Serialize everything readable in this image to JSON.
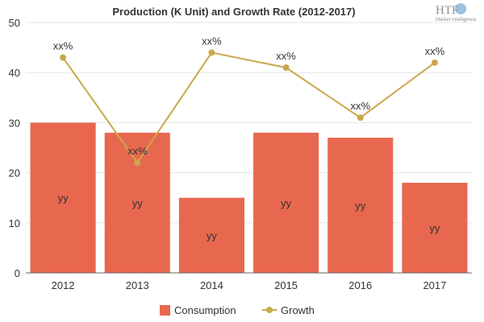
{
  "chart_data": {
    "type": "bar",
    "title": "Production (K Unit) and Growth Rate (2012-2017)",
    "categories": [
      "2012",
      "2013",
      "2014",
      "2015",
      "2016",
      "2017"
    ],
    "ylim": [
      0,
      50
    ],
    "yticks": [
      "0",
      "10",
      "20",
      "30",
      "40",
      "50"
    ],
    "grid": true,
    "series": [
      {
        "name": "Consumption",
        "type": "bar",
        "color": "#e8684f",
        "values": [
          30,
          28,
          15,
          28,
          27,
          18
        ],
        "labels": [
          "yy",
          "yy",
          "yy",
          "yy",
          "yy",
          "yy"
        ]
      },
      {
        "name": "Growth",
        "type": "line",
        "color": "#c9a84c",
        "values": [
          43,
          22,
          44,
          41,
          31,
          42
        ],
        "labels": [
          "xx%",
          "xx%",
          "xx%",
          "xx%",
          "xx%",
          "xx%"
        ]
      }
    ],
    "legend_position": "bottom-center"
  },
  "logo": {
    "name": "HTF",
    "tagline": "Market Intelligence"
  }
}
